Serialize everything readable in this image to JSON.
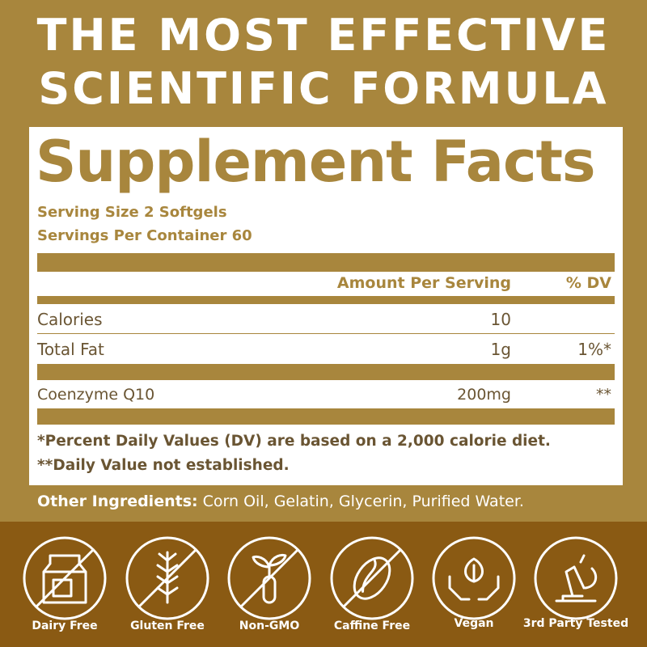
{
  "header": {
    "title_lines": [
      "THE MOST EFFECTIVE",
      "SCIENTIFIC FORMULA"
    ]
  },
  "facts": {
    "title": "Supplement Facts",
    "serving_size": "Serving Size 2 Softgels",
    "servings_per_container": "Servings Per Container 60",
    "columns": [
      "Amount Per Serving",
      "% DV"
    ],
    "rows": [
      {
        "name": "Calories",
        "amount": "10"
      },
      {
        "name": "Total Fat",
        "amount": "1g",
        "dv": "1%*"
      },
      {
        "name": "Coenzyme Q10",
        "amount": "200mg",
        "dv": "**"
      }
    ],
    "footnotes": [
      "*Percent Daily Values (DV) are based on a 2,000 calorie diet.",
      "**Daily Value not established."
    ]
  },
  "other_ingredients": {
    "label": "Other Ingredients:",
    "text": "Corn Oil, Gelatin, Glycerin, Purified Water."
  },
  "badges": [
    "Dairy Free",
    "Gluten Free",
    "Non-GMO",
    "Caffine Free",
    "Vegan",
    "3rd Party Tested"
  ]
}
